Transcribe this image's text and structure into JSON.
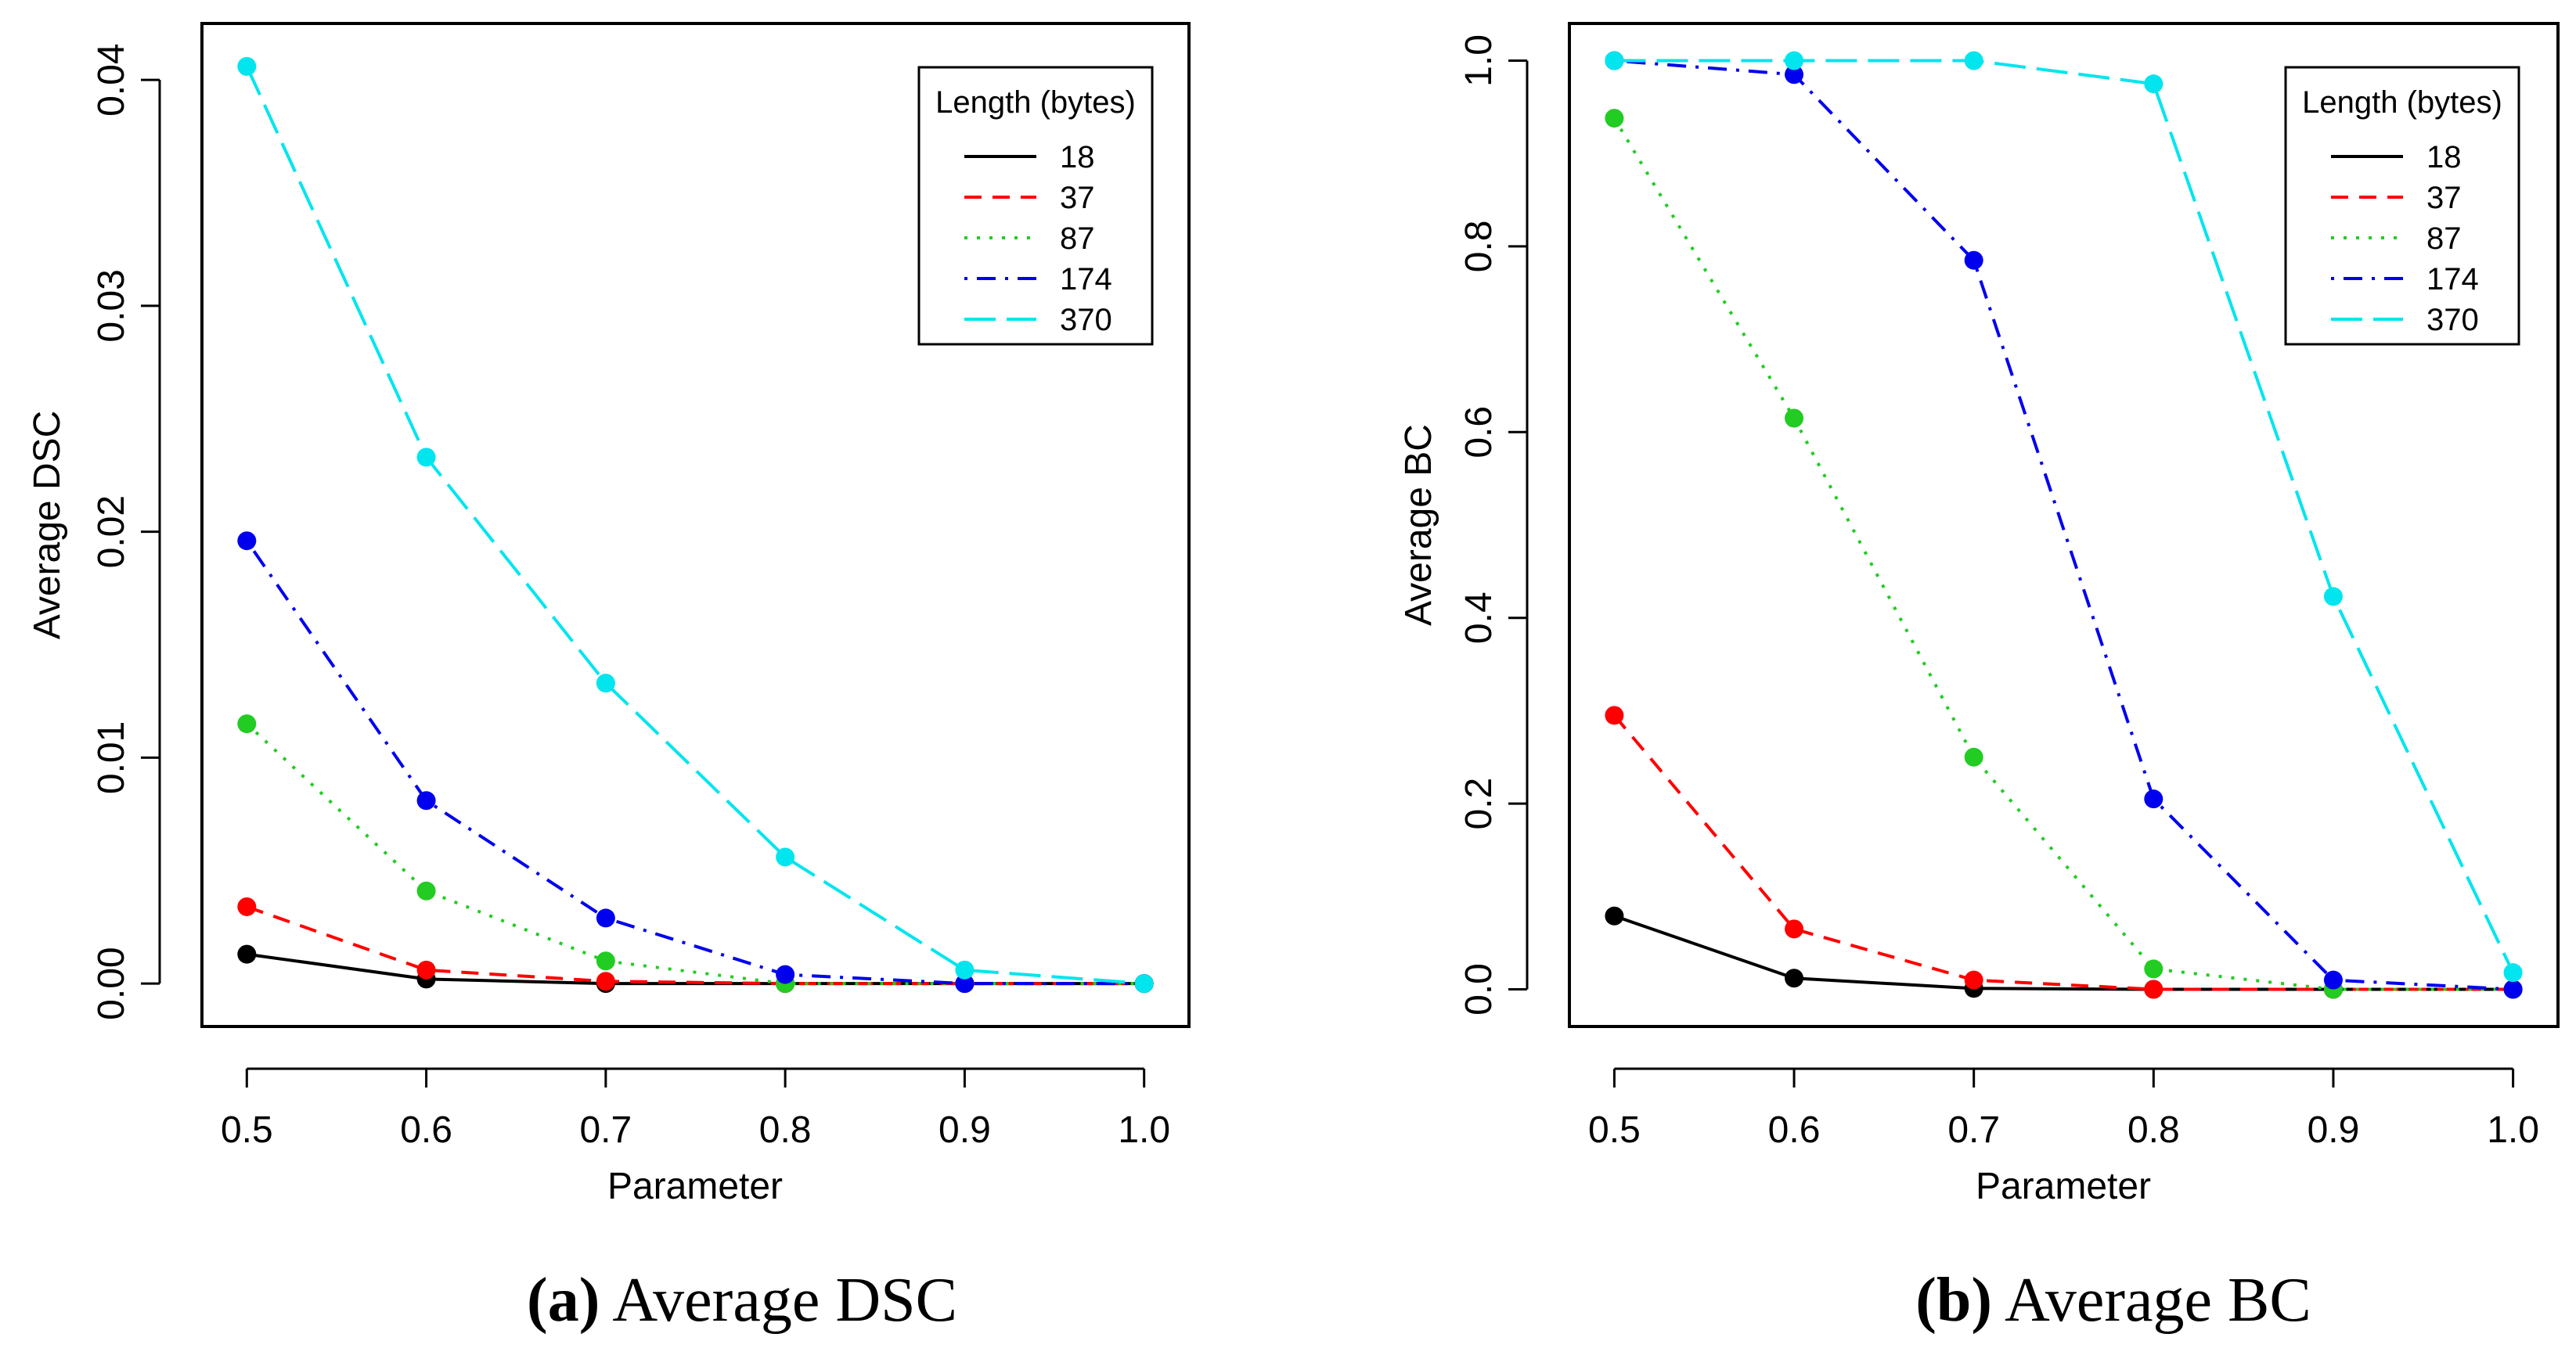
{
  "chart_data": [
    {
      "type": "line",
      "title": "",
      "caption_label": "(a)",
      "caption_text": "Average DSC",
      "xlabel": "Parameter",
      "ylabel": "Average DSC",
      "x": [
        0.5,
        0.6,
        0.7,
        0.8,
        0.9,
        1.0
      ],
      "x_tick_labels": [
        "0.5",
        "0.6",
        "0.7",
        "0.8",
        "0.9",
        "1.0"
      ],
      "xlim": [
        0.475,
        1.025
      ],
      "ylim": [
        -0.0019,
        0.0425
      ],
      "y_ticks": [
        0.0,
        0.01,
        0.02,
        0.03,
        0.04
      ],
      "y_tick_labels": [
        "0.00",
        "0.01",
        "0.02",
        "0.03",
        "0.04"
      ],
      "legend_title": "Length (bytes)",
      "legend_position": "top-right",
      "series": [
        {
          "name": "18",
          "color": "#000000",
          "dash": "solid",
          "values": [
            0.0013,
            0.0002,
            0.0,
            0.0,
            0.0,
            0.0
          ]
        },
        {
          "name": "37",
          "color": "#ff0000",
          "dash": "dashed",
          "values": [
            0.0034,
            0.0006,
            0.0001,
            0.0,
            0.0,
            0.0
          ]
        },
        {
          "name": "87",
          "color": "#22cc22",
          "dash": "dotted",
          "values": [
            0.0115,
            0.0041,
            0.001,
            0.0,
            0.0,
            0.0
          ]
        },
        {
          "name": "174",
          "color": "#0000ee",
          "dash": "dotdash",
          "values": [
            0.0196,
            0.0081,
            0.0029,
            0.0004,
            0.0,
            0.0
          ]
        },
        {
          "name": "370",
          "color": "#00e5ee",
          "dash": "longdash",
          "values": [
            0.0406,
            0.0233,
            0.0133,
            0.0056,
            0.0006,
            0.0
          ]
        }
      ]
    },
    {
      "type": "line",
      "title": "",
      "caption_label": "(b)",
      "caption_text": "Average BC",
      "xlabel": "Parameter",
      "ylabel": "Average BC",
      "x": [
        0.5,
        0.6,
        0.7,
        0.8,
        0.9,
        1.0
      ],
      "x_tick_labels": [
        "0.5",
        "0.6",
        "0.7",
        "0.8",
        "0.9",
        "1.0"
      ],
      "xlim": [
        0.475,
        1.025
      ],
      "ylim": [
        -0.04,
        1.04
      ],
      "y_ticks": [
        0.0,
        0.2,
        0.4,
        0.6,
        0.8,
        1.0
      ],
      "y_tick_labels": [
        "0.0",
        "0.2",
        "0.4",
        "0.6",
        "0.8",
        "1.0"
      ],
      "legend_title": "Length (bytes)",
      "legend_position": "top-right",
      "series": [
        {
          "name": "18",
          "color": "#000000",
          "dash": "solid",
          "values": [
            0.079,
            0.012,
            0.001,
            0.0,
            0.0,
            0.0
          ]
        },
        {
          "name": "37",
          "color": "#ff0000",
          "dash": "dashed",
          "values": [
            0.295,
            0.065,
            0.01,
            0.0,
            0.0,
            0.0
          ]
        },
        {
          "name": "87",
          "color": "#22cc22",
          "dash": "dotted",
          "values": [
            0.938,
            0.615,
            0.25,
            0.022,
            0.0,
            0.0
          ]
        },
        {
          "name": "174",
          "color": "#0000ee",
          "dash": "dotdash",
          "values": [
            1.0,
            0.985,
            0.785,
            0.205,
            0.01,
            0.0
          ]
        },
        {
          "name": "370",
          "color": "#00e5ee",
          "dash": "longdash",
          "values": [
            1.0,
            1.0,
            1.0,
            0.975,
            0.423,
            0.018
          ]
        }
      ]
    }
  ]
}
